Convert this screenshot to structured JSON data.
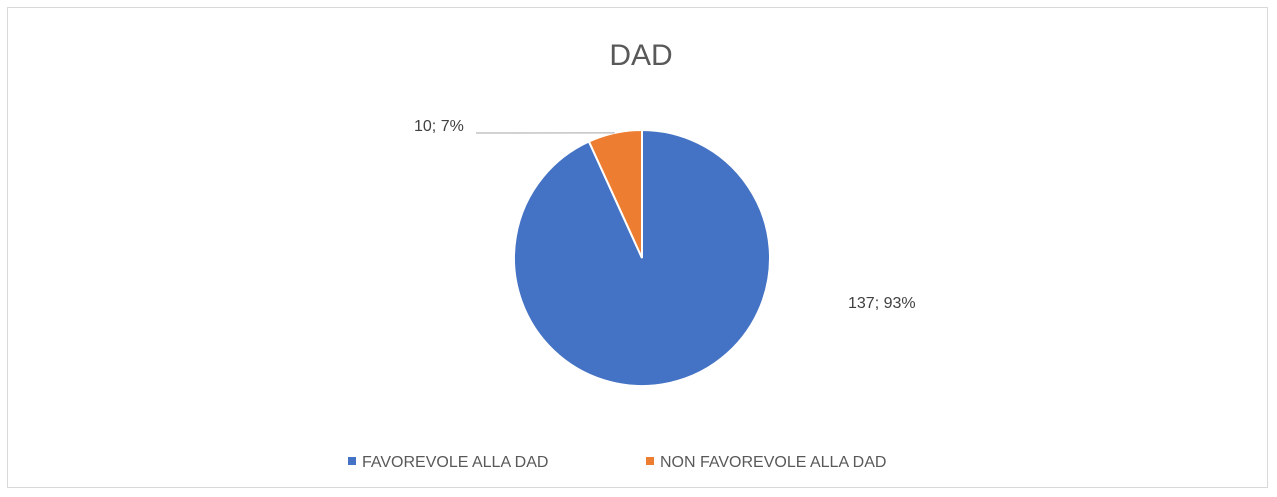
{
  "chart_data": {
    "type": "pie",
    "title": "DAD",
    "categories": [
      "FAVOREVOLE ALLA DAD",
      "NON FAVOREVOLE ALLA DAD"
    ],
    "values": [
      137,
      10
    ],
    "percentages": [
      93,
      7
    ],
    "data_labels": [
      "137; 93%",
      "10; 7%"
    ],
    "colors": [
      "#4472C4",
      "#ED7D31"
    ],
    "legend_position": "bottom"
  }
}
